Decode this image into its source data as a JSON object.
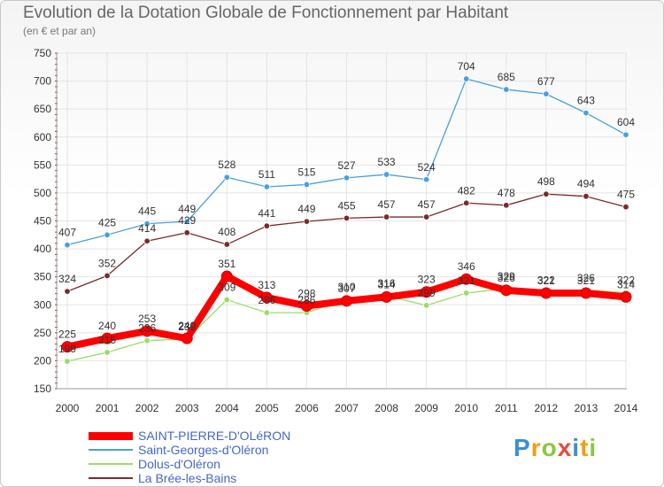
{
  "title": "Evolution de la Dotation Globale de Fonctionnement par Habitant",
  "subtitle": "(en € et par an)",
  "logo": {
    "text": "Proxiti",
    "colors": [
      "#3a8fd6",
      "#f39c12",
      "#8cc63f",
      "#e74c3c",
      "#3a8fd6",
      "#f39c12",
      "#8cc63f"
    ]
  },
  "chart_data": {
    "type": "line",
    "title": "Evolution de la Dotation Globale de Fonctionnement par Habitant",
    "ylabel": "(en € et par an)",
    "x": [
      2000,
      2001,
      2002,
      2003,
      2004,
      2005,
      2006,
      2007,
      2008,
      2009,
      2010,
      2011,
      2012,
      2013,
      2014
    ],
    "ylim": [
      150,
      750
    ],
    "yticks": [
      150,
      200,
      250,
      300,
      350,
      400,
      450,
      500,
      550,
      600,
      650,
      700,
      750
    ],
    "series": [
      {
        "name": "SAINT-PIERRE-D'OLéRON",
        "color": "#ff0000",
        "values": [
          225,
          240,
          253,
          240,
          351,
          313,
          298,
          307,
          314,
          323,
          346,
          326,
          321,
          321,
          314
        ]
      },
      {
        "name": "Saint-Georges-d'Oléron",
        "color": "#4a9fe0",
        "values": [
          407,
          425,
          445,
          449,
          528,
          511,
          515,
          527,
          533,
          524,
          704,
          685,
          677,
          643,
          604
        ]
      },
      {
        "name": "Dolus-d'Oléron",
        "color": "#99dd66",
        "values": [
          199,
          215,
          236,
          239,
          309,
          286,
          286,
          310,
          316,
          299,
          321,
          329,
          322,
          326,
          322
        ]
      },
      {
        "name": "La Brée-les-Bains",
        "color": "#7a2a2a",
        "values": [
          324,
          352,
          414,
          429,
          408,
          441,
          449,
          455,
          457,
          457,
          482,
          478,
          498,
          494,
          475
        ]
      }
    ]
  }
}
